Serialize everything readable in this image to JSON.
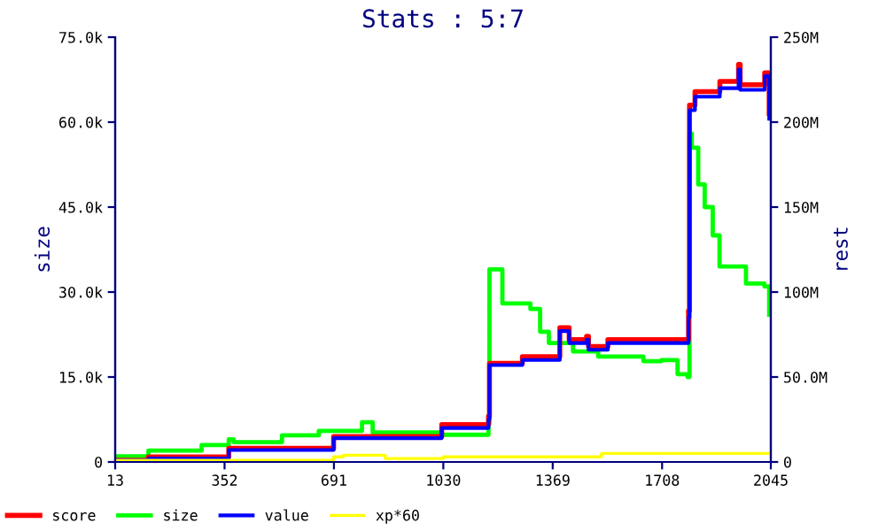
{
  "chart_data": {
    "type": "step",
    "title": "Stats : 5:7",
    "xlabel": null,
    "ylabel": "size",
    "y2label": "rest",
    "xlim": [
      13,
      2045
    ],
    "xticks": [
      13,
      352,
      691,
      1030,
      1369,
      1708,
      2045
    ],
    "ylim": [
      0,
      75000
    ],
    "yticks": [
      0,
      {
        "value": 15000,
        "label": "15.0k"
      },
      {
        "value": 30000,
        "label": "30.0k"
      },
      {
        "value": 45000,
        "label": "45.0k"
      },
      {
        "value": 60000,
        "label": "60.0k"
      },
      {
        "value": 75000,
        "label": "75.0k"
      }
    ],
    "y2lim": [
      0,
      250
    ],
    "y2ticks": [
      0,
      {
        "value": 50,
        "label": "50.0M"
      },
      {
        "value": 100,
        "label": "100M"
      },
      {
        "value": 150,
        "label": "150M"
      },
      {
        "value": 200,
        "label": "200M"
      },
      {
        "value": 250,
        "label": "250M"
      }
    ],
    "legend": "bottom",
    "grid": false,
    "series": [
      {
        "name": "score",
        "color": "#ff0000",
        "axis": "y2",
        "x": [
          13,
          116,
          365,
          690,
          1025,
          1170,
          1173,
          1275,
          1391,
          1420,
          1474,
          1480,
          1540,
          1790,
          1793,
          1810,
          1887,
          1945,
          1950,
          2026,
          2040
        ],
        "values": [
          1,
          3,
          8,
          15,
          22,
          27,
          58,
          62,
          79,
          72,
          74,
          68,
          72,
          89,
          210,
          218,
          224,
          234,
          222,
          229,
          205
        ]
      },
      {
        "name": "size",
        "color": "#00ff00",
        "x": [
          13,
          116,
          281,
          365,
          380,
          530,
          644,
          778,
          811,
          1025,
          1170,
          1173,
          1213,
          1300,
          1330,
          1357,
          1432,
          1510,
          1560,
          1650,
          1706,
          1756,
          1787,
          1793,
          1800,
          1820,
          1840,
          1865,
          1886,
          1968,
          2025,
          2040
        ],
        "values": [
          1000,
          2000,
          3000,
          4000,
          3500,
          4700,
          5500,
          7000,
          5200,
          4800,
          6800,
          34000,
          28000,
          27000,
          23000,
          21000,
          19500,
          18600,
          18600,
          17800,
          18000,
          15500,
          15000,
          58000,
          55500,
          49000,
          45000,
          40000,
          34500,
          31500,
          31000,
          26000
        ]
      },
      {
        "name": "value",
        "color": "#0000ff",
        "axis": "y2",
        "x": [
          13,
          116,
          365,
          690,
          1025,
          1170,
          1173,
          1275,
          1391,
          1420,
          1474,
          1480,
          1540,
          1790,
          1793,
          1810,
          1887,
          1945,
          1950,
          2026,
          2040
        ],
        "values": [
          1,
          2,
          7,
          14,
          20,
          25,
          57,
          60,
          77,
          70,
          72,
          66,
          70,
          85,
          207,
          215,
          220,
          231,
          219,
          227,
          202
        ]
      },
      {
        "name": "xp*60",
        "color": "#ffff00",
        "axis": "y2",
        "x": [
          13,
          690,
          720,
          850,
          1030,
          1500,
          1520,
          2045
        ],
        "values": [
          1,
          3,
          4,
          2,
          3,
          3,
          5,
          5
        ]
      }
    ]
  }
}
